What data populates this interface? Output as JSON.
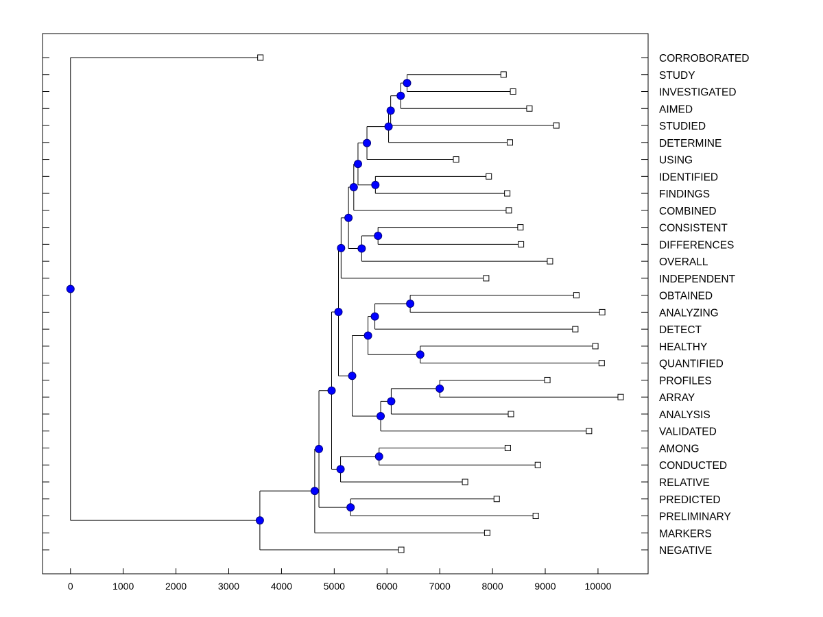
{
  "chart_data": {
    "type": "dendrogram",
    "orientation": "horizontal",
    "xlim": [
      -530,
      10950
    ],
    "xticks": [
      0,
      1000,
      2000,
      3000,
      4000,
      5000,
      6000,
      7000,
      8000,
      9000,
      10000
    ],
    "colors": {
      "node": "#0000ff",
      "node_stroke": "#000080",
      "line": "#000000",
      "leaf_marker": "#ffffff"
    },
    "leaves": [
      {
        "label": "CORROBORATED",
        "x": 3600
      },
      {
        "label": "STUDY",
        "x": 8210
      },
      {
        "label": "INVESTIGATED",
        "x": 8390
      },
      {
        "label": "AIMED",
        "x": 8700
      },
      {
        "label": "STUDIED",
        "x": 9210
      },
      {
        "label": "DETERMINE",
        "x": 8330
      },
      {
        "label": "USING",
        "x": 7310
      },
      {
        "label": "IDENTIFIED",
        "x": 7930
      },
      {
        "label": "FINDINGS",
        "x": 8280
      },
      {
        "label": "COMBINED",
        "x": 8310
      },
      {
        "label": "CONSISTENT",
        "x": 8530
      },
      {
        "label": "DIFFERENCES",
        "x": 8540
      },
      {
        "label": "OVERALL",
        "x": 9090
      },
      {
        "label": "INDEPENDENT",
        "x": 7880
      },
      {
        "label": "OBTAINED",
        "x": 9590
      },
      {
        "label": "ANALYZING",
        "x": 10080
      },
      {
        "label": "DETECT",
        "x": 9570
      },
      {
        "label": "HEALTHY",
        "x": 9950
      },
      {
        "label": "QUANTIFIED",
        "x": 10070
      },
      {
        "label": "PROFILES",
        "x": 9040
      },
      {
        "label": "ARRAY",
        "x": 10430
      },
      {
        "label": "ANALYSIS",
        "x": 8350
      },
      {
        "label": "VALIDATED",
        "x": 9830
      },
      {
        "label": "AMONG",
        "x": 8290
      },
      {
        "label": "CONDUCTED",
        "x": 8860
      },
      {
        "label": "RELATIVE",
        "x": 7480
      },
      {
        "label": "PREDICTED",
        "x": 8080
      },
      {
        "label": "PRELIMINARY",
        "x": 8820
      },
      {
        "label": "MARKERS",
        "x": 7900
      },
      {
        "label": "NEGATIVE",
        "x": 6270
      }
    ],
    "merges": [
      {
        "id": "n1",
        "x": 6380,
        "children": [
          "STUDY",
          "INVESTIGATED"
        ]
      },
      {
        "id": "n2",
        "x": 6260,
        "children": [
          "n1",
          "AIMED"
        ]
      },
      {
        "id": "n3",
        "x": 6070,
        "children": [
          "n2",
          "STUDIED"
        ]
      },
      {
        "id": "n4",
        "x": 6030,
        "children": [
          "n3",
          "DETERMINE"
        ]
      },
      {
        "id": "n5",
        "x": 5620,
        "children": [
          "n4",
          "USING"
        ]
      },
      {
        "id": "n6",
        "x": 5780,
        "children": [
          "IDENTIFIED",
          "FINDINGS"
        ]
      },
      {
        "id": "n7",
        "x": 5450,
        "children": [
          "n5",
          "n6"
        ]
      },
      {
        "id": "n8",
        "x": 5370,
        "children": [
          "n7",
          "COMBINED"
        ]
      },
      {
        "id": "n9",
        "x": 5830,
        "children": [
          "CONSISTENT",
          "DIFFERENCES"
        ]
      },
      {
        "id": "n10",
        "x": 5520,
        "children": [
          "n9",
          "OVERALL"
        ]
      },
      {
        "id": "n11",
        "x": 5270,
        "children": [
          "n8",
          "n10"
        ]
      },
      {
        "id": "n12",
        "x": 5130,
        "children": [
          "n11",
          "INDEPENDENT"
        ]
      },
      {
        "id": "n13",
        "x": 6440,
        "children": [
          "OBTAINED",
          "ANALYZING"
        ]
      },
      {
        "id": "n14",
        "x": 5770,
        "children": [
          "n13",
          "DETECT"
        ]
      },
      {
        "id": "n15",
        "x": 6630,
        "children": [
          "HEALTHY",
          "QUANTIFIED"
        ]
      },
      {
        "id": "n16",
        "x": 5640,
        "children": [
          "n14",
          "n15"
        ]
      },
      {
        "id": "n17",
        "x": 7000,
        "children": [
          "PROFILES",
          "ARRAY"
        ]
      },
      {
        "id": "n18",
        "x": 6080,
        "children": [
          "n17",
          "ANALYSIS"
        ]
      },
      {
        "id": "n19",
        "x": 5880,
        "children": [
          "n18",
          "VALIDATED"
        ]
      },
      {
        "id": "n20",
        "x": 5340,
        "children": [
          "n16",
          "n19"
        ]
      },
      {
        "id": "n21",
        "x": 5080,
        "children": [
          "n12",
          "n20"
        ]
      },
      {
        "id": "n22",
        "x": 5850,
        "children": [
          "AMONG",
          "CONDUCTED"
        ]
      },
      {
        "id": "n23",
        "x": 5120,
        "children": [
          "n22",
          "RELATIVE"
        ]
      },
      {
        "id": "n24",
        "x": 4950,
        "children": [
          "n21",
          "n23"
        ]
      },
      {
        "id": "n25",
        "x": 5310,
        "children": [
          "PREDICTED",
          "PRELIMINARY"
        ]
      },
      {
        "id": "n26",
        "x": 4710,
        "children": [
          "n24",
          "n25"
        ]
      },
      {
        "id": "n27",
        "x": 4630,
        "children": [
          "n26",
          "MARKERS"
        ]
      },
      {
        "id": "n28",
        "x": 3590,
        "children": [
          "n27",
          "NEGATIVE"
        ]
      },
      {
        "id": "n29",
        "x": 0,
        "children": [
          "CORROBORATED",
          "n28"
        ]
      }
    ]
  }
}
